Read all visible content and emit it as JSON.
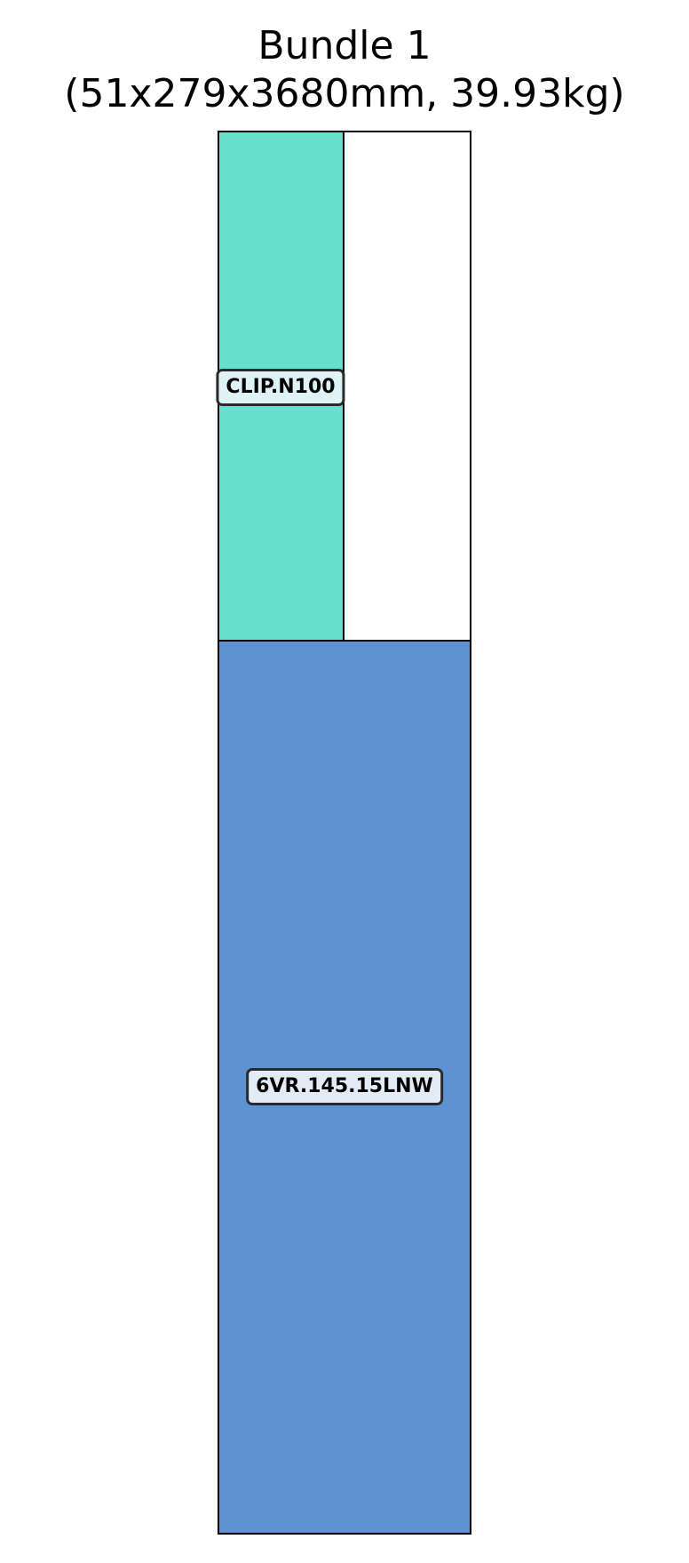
{
  "title": {
    "line1": "Bundle 1",
    "line2": "(51x279x3680mm, 39.93kg)"
  },
  "colors": {
    "clip_fill": "#66DFCC",
    "main_fill": "#5F92D2",
    "clip_tag_fill": "#DFF3F6",
    "main_tag_fill": "#E3ECF6",
    "outline": "#000000"
  },
  "pieces": [
    {
      "label": "CLIP.N100"
    },
    {
      "label": ""
    },
    {
      "label": "6VR.145.15LNW"
    }
  ]
}
